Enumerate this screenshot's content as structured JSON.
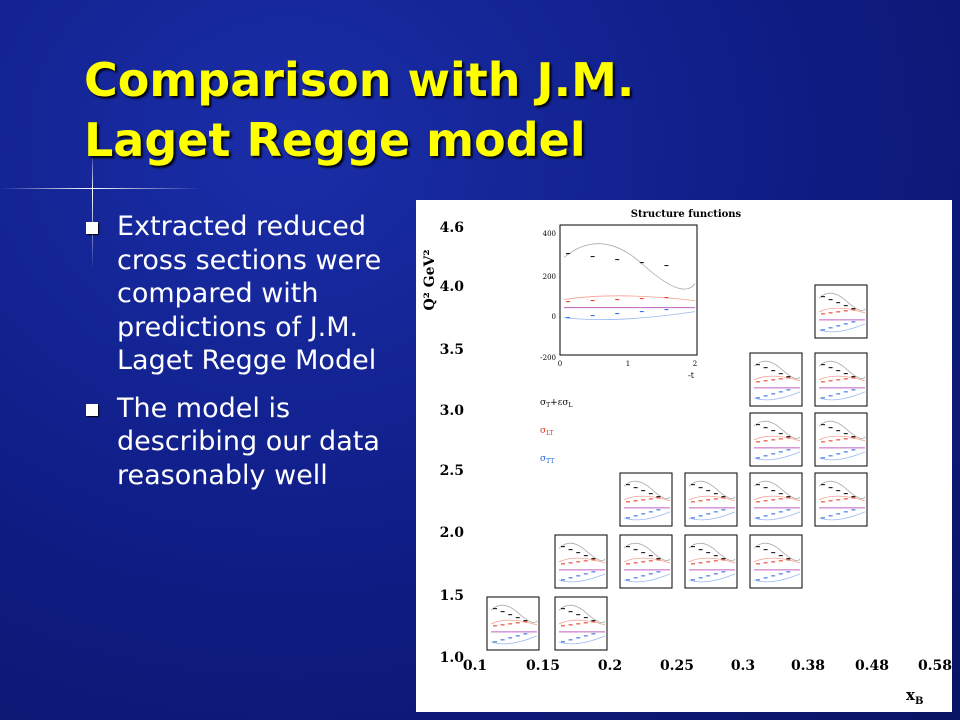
{
  "slide": {
    "title": "Comparison with J.M. Laget Regge model",
    "bullets": [
      "Extracted reduced cross sections were compared with predictions of J.M. Laget Regge Model",
      "The model is describing our data reasonably well"
    ]
  },
  "figure": {
    "title": "Structure functions",
    "y_axis_label": "Q² GeV²",
    "x_axis_label": {
      "base": "x",
      "subscript": "B"
    },
    "y_ticks": [
      "4.6",
      "4.0",
      "3.5",
      "3.0",
      "2.5",
      "2.0",
      "1.5",
      "1.0"
    ],
    "x_ticks": [
      "0.1",
      "0.15",
      "0.2",
      "0.25",
      "0.3",
      "0.38",
      "0.48",
      "0.58"
    ],
    "inset": {
      "y_ticks": [
        "400",
        "200",
        "0",
        "-200"
      ],
      "x_ticks": [
        "0",
        "1",
        "2"
      ],
      "x_label": "-t"
    },
    "legend": [
      {
        "base": "σ",
        "sub": "T",
        "rest": "+εσ",
        "sub2": "L"
      },
      {
        "base": "σ",
        "sub": "LT"
      },
      {
        "base": "σ",
        "sub": "TT"
      }
    ]
  }
}
